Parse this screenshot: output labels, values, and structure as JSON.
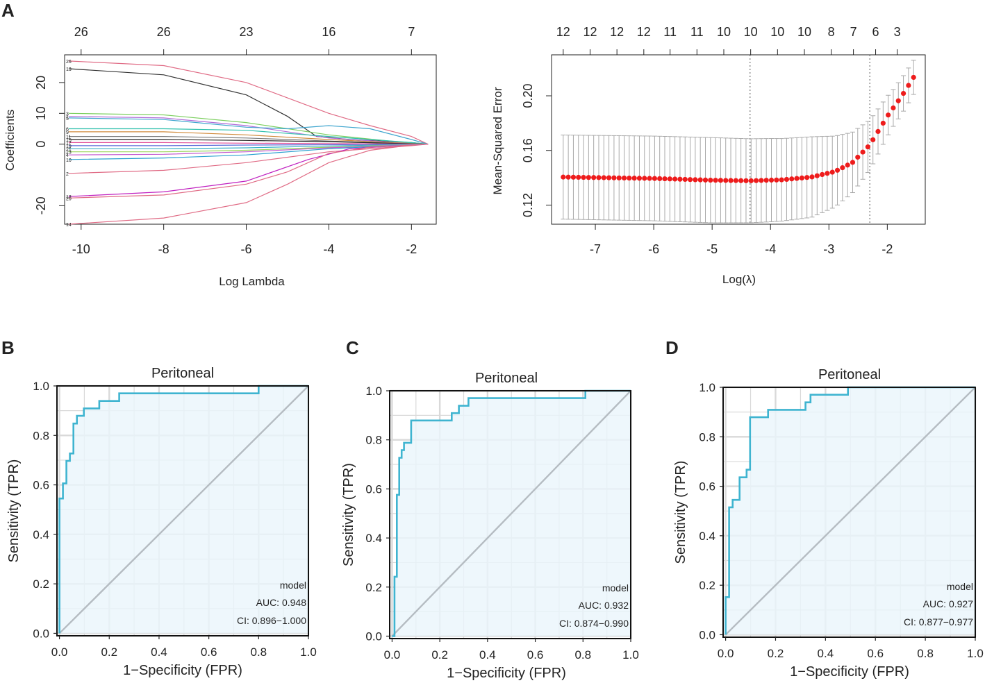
{
  "panels": {
    "A": "A",
    "B": "B",
    "C": "C",
    "D": "D"
  },
  "colors": {
    "roc_line": "#3fb4d0",
    "roc_fill": "#eaf5fb",
    "diagonal": "#b5bcc2",
    "grid": "#d9d9d9",
    "mse_point": "#ee1c1c",
    "errbar": "#a8a8a8"
  },
  "chart_data": [
    {
      "id": "lasso_path",
      "type": "line",
      "xlabel": "Log Lambda",
      "ylabel": "Coefficients",
      "xlim": [
        -10.4,
        -1.4
      ],
      "ylim": [
        -26,
        29
      ],
      "xticks": [
        "-10",
        "-8",
        "-6",
        "-4",
        "-2"
      ],
      "xtick_values": [
        -10,
        -8,
        -6,
        -4,
        -2
      ],
      "yticks": [
        "-20",
        "0",
        "10",
        "20"
      ],
      "ytick_values": [
        -20,
        0,
        10,
        20
      ],
      "top_axis_labels": [
        "26",
        "26",
        "23",
        "16",
        "7"
      ],
      "top_axis_values": [
        -10,
        -8,
        -6,
        -4,
        -2
      ],
      "zero_point": -1.6,
      "series": [
        {
          "label": "26",
          "color": "#e06b85",
          "points": [
            [
              -10.3,
              27
            ],
            [
              -8,
              25.5
            ],
            [
              -6,
              20
            ],
            [
              -4,
              10
            ],
            [
              -3,
              6
            ],
            [
              -2,
              2.5
            ],
            [
              -1.6,
              0
            ]
          ]
        },
        {
          "label": "13",
          "color": "#333333",
          "points": [
            [
              -10.3,
              24.5
            ],
            [
              -8,
              22.5
            ],
            [
              -6,
              16
            ],
            [
              -5,
              9
            ],
            [
              -4.3,
              2.5
            ],
            [
              -3.5,
              1.5
            ],
            [
              -2,
              0.5
            ],
            [
              -1.6,
              0
            ]
          ]
        },
        {
          "label": "3",
          "color": "#7ccf5f",
          "points": [
            [
              -10.3,
              10
            ],
            [
              -8,
              9.5
            ],
            [
              -6,
              7
            ],
            [
              -4,
              3
            ],
            [
              -2,
              0.3
            ],
            [
              -1.6,
              0
            ]
          ]
        },
        {
          "label": "1",
          "color": "#b06ad9",
          "points": [
            [
              -10.3,
              9
            ],
            [
              -8,
              8.5
            ],
            [
              -6,
              6
            ],
            [
              -4,
              2
            ],
            [
              -2,
              0.2
            ],
            [
              -1.6,
              0
            ]
          ]
        },
        {
          "label": "5",
          "color": "#40a6cf",
          "points": [
            [
              -10.3,
              8.5
            ],
            [
              -8,
              8
            ],
            [
              -6,
              5.5
            ],
            [
              -5,
              5
            ],
            [
              -4,
              6
            ],
            [
              -3,
              5
            ],
            [
              -2,
              1.5
            ],
            [
              -1.6,
              0
            ]
          ]
        },
        {
          "label": "6",
          "color": "#2fc0ac",
          "points": [
            [
              -10.3,
              5
            ],
            [
              -8,
              5
            ],
            [
              -6,
              4.5
            ],
            [
              -4,
              2.5
            ],
            [
              -2,
              0.5
            ],
            [
              -1.6,
              0
            ]
          ]
        },
        {
          "label": "9",
          "color": "#d08a3a",
          "points": [
            [
              -10.3,
              4
            ],
            [
              -8,
              4
            ],
            [
              -6,
              3
            ],
            [
              -4,
              1.5
            ],
            [
              -2,
              0.2
            ],
            [
              -1.6,
              0
            ]
          ]
        },
        {
          "label": "11",
          "color": "#7a7a7a",
          "points": [
            [
              -10.3,
              2.5
            ],
            [
              -8,
              2.5
            ],
            [
              -6,
              2
            ],
            [
              -4,
              1
            ],
            [
              -2,
              0.1
            ],
            [
              -1.6,
              0
            ]
          ]
        },
        {
          "label": "15",
          "color": "#222222",
          "points": [
            [
              -10.3,
              1.5
            ],
            [
              -8,
              1.5
            ],
            [
              -6,
              1.2
            ],
            [
              -4,
              0.8
            ],
            [
              -2,
              0.1
            ],
            [
              -1.6,
              0
            ]
          ]
        },
        {
          "label": "17",
          "color": "#e0509a",
          "points": [
            [
              -10.3,
              0.5
            ],
            [
              -8,
              0.5
            ],
            [
              -6,
              0.3
            ],
            [
              -4,
              0.2
            ],
            [
              -1.6,
              0
            ]
          ]
        },
        {
          "label": "19",
          "color": "#5a6ad9",
          "points": [
            [
              -10.3,
              -0.5
            ],
            [
              -8,
              -0.5
            ],
            [
              -6,
              -0.3
            ],
            [
              -4,
              -0.2
            ],
            [
              -1.6,
              0
            ]
          ]
        },
        {
          "label": "21",
          "color": "#3ab0c8",
          "points": [
            [
              -10.3,
              -1.5
            ],
            [
              -8,
              -1.5
            ],
            [
              -6,
              -1.2
            ],
            [
              -4,
              -0.6
            ],
            [
              -1.6,
              0
            ]
          ]
        },
        {
          "label": "23",
          "color": "#9bd45a",
          "points": [
            [
              -10.3,
              -2.5
            ],
            [
              -8,
              -2.5
            ],
            [
              -6,
              -2
            ],
            [
              -4,
              -1
            ],
            [
              -1.6,
              0
            ]
          ]
        },
        {
          "label": "4",
          "color": "#c35ad0",
          "points": [
            [
              -10.3,
              -3.5
            ],
            [
              -8,
              -3.3
            ],
            [
              -6,
              -2.5
            ],
            [
              -4,
              -1.2
            ],
            [
              -1.6,
              0
            ]
          ]
        },
        {
          "label": "10",
          "color": "#2aa0d0",
          "points": [
            [
              -10.3,
              -5
            ],
            [
              -8,
              -4.5
            ],
            [
              -6,
              -3.5
            ],
            [
              -4,
              -1.5
            ],
            [
              -1.6,
              0
            ]
          ]
        },
        {
          "label": "2",
          "color": "#e06b85",
          "points": [
            [
              -10.3,
              -9.5
            ],
            [
              -8,
              -8.5
            ],
            [
              -6,
              -6
            ],
            [
              -4,
              -2.5
            ],
            [
              -2,
              -0.5
            ],
            [
              -1.6,
              0
            ]
          ]
        },
        {
          "label": "12",
          "color": "#c020c0",
          "points": [
            [
              -10.3,
              -17
            ],
            [
              -8,
              -15.5
            ],
            [
              -6,
              -12
            ],
            [
              -4.5,
              -5
            ],
            [
              -3.5,
              -1.5
            ],
            [
              -2,
              -0.3
            ],
            [
              -1.6,
              0
            ]
          ]
        },
        {
          "label": "20",
          "color": "#e06b85",
          "points": [
            [
              -10.3,
              -17.5
            ],
            [
              -8,
              -16.5
            ],
            [
              -6,
              -13
            ],
            [
              -5,
              -9
            ],
            [
              -4,
              -3
            ],
            [
              -3,
              -1
            ],
            [
              -1.6,
              0
            ]
          ]
        },
        {
          "label": "14",
          "color": "#e06b85",
          "points": [
            [
              -10.3,
              -26
            ],
            [
              -8,
              -24
            ],
            [
              -6,
              -19
            ],
            [
              -5,
              -13
            ],
            [
              -4,
              -6
            ],
            [
              -3,
              -2
            ],
            [
              -2,
              -0.3
            ],
            [
              -1.6,
              0
            ]
          ]
        }
      ]
    },
    {
      "id": "cv_mse",
      "type": "scatter",
      "xlabel": "Log(λ)",
      "ylabel": "Mean-Squared Error",
      "xlim": [
        -7.75,
        -1.35
      ],
      "ylim": [
        0.106,
        0.23
      ],
      "xticks": [
        "-7",
        "-6",
        "-5",
        "-4",
        "-3",
        "-2"
      ],
      "xtick_values": [
        -7,
        -6,
        -5,
        -4,
        -3,
        -2
      ],
      "yticks": [
        "0.12",
        "0.16",
        "0.20"
      ],
      "ytick_values": [
        0.12,
        0.16,
        0.2
      ],
      "top_axis_labels": [
        "12",
        "12",
        "12",
        "12",
        "11",
        "11",
        "10",
        "10",
        "10",
        "10",
        "8",
        "7",
        "6",
        "3"
      ],
      "top_axis_values": [
        -7.55,
        -7.09,
        -6.63,
        -6.17,
        -5.72,
        -5.26,
        -4.8,
        -4.34,
        -3.88,
        -3.42,
        -2.96,
        -2.58,
        -2.2,
        -1.83
      ],
      "vlines": [
        -4.35,
        -2.3
      ],
      "x_start": -7.55,
      "x_end": -1.55,
      "n_points": 70,
      "mse_knots": [
        [
          -7.55,
          0.1405
        ],
        [
          -6.0,
          0.1395
        ],
        [
          -5.0,
          0.1382
        ],
        [
          -4.35,
          0.1378
        ],
        [
          -3.8,
          0.1385
        ],
        [
          -3.3,
          0.1405
        ],
        [
          -2.9,
          0.1445
        ],
        [
          -2.6,
          0.151
        ],
        [
          -2.3,
          0.164
        ],
        [
          -2.0,
          0.185
        ],
        [
          -1.75,
          0.2
        ],
        [
          -1.55,
          0.2135
        ]
      ],
      "se_knots": [
        [
          -7.55,
          0.0308
        ],
        [
          -6.0,
          0.031
        ],
        [
          -5.0,
          0.0312
        ],
        [
          -4.0,
          0.0305
        ],
        [
          -3.3,
          0.0295
        ],
        [
          -2.9,
          0.026
        ],
        [
          -2.5,
          0.021
        ],
        [
          -2.2,
          0.017
        ],
        [
          -1.9,
          0.0135
        ],
        [
          -1.55,
          0.0125
        ]
      ]
    },
    {
      "id": "roc_B",
      "type": "line",
      "title": "Peritoneal",
      "xlabel": "1−Specificity (FPR)",
      "ylabel": "Sensitivity (TPR)",
      "xlim": [
        -0.01,
        1.0
      ],
      "ylim": [
        -0.01,
        1.0
      ],
      "ticks": [
        "0.0",
        "0.2",
        "0.4",
        "0.6",
        "0.8",
        "1.0"
      ],
      "tick_values": [
        0,
        0.2,
        0.4,
        0.6,
        0.8,
        1.0
      ],
      "legend_title": "model",
      "auc": "AUC: 0.948",
      "ci": "CI: 0.896−1.000",
      "roc": [
        [
          0,
          0
        ],
        [
          0,
          0.545
        ],
        [
          0.014,
          0.545
        ],
        [
          0.014,
          0.606
        ],
        [
          0.028,
          0.606
        ],
        [
          0.028,
          0.697
        ],
        [
          0.042,
          0.697
        ],
        [
          0.042,
          0.727
        ],
        [
          0.056,
          0.727
        ],
        [
          0.056,
          0.848
        ],
        [
          0.07,
          0.848
        ],
        [
          0.07,
          0.879
        ],
        [
          0.098,
          0.879
        ],
        [
          0.098,
          0.909
        ],
        [
          0.16,
          0.909
        ],
        [
          0.16,
          0.939
        ],
        [
          0.24,
          0.939
        ],
        [
          0.24,
          0.97
        ],
        [
          0.8,
          0.97
        ],
        [
          0.8,
          1.0
        ],
        [
          1.0,
          1.0
        ]
      ]
    },
    {
      "id": "roc_C",
      "type": "line",
      "title": "Peritoneal",
      "xlabel": "1−Specificity (FPR)",
      "ylabel": "Sensitivity (TPR)",
      "xlim": [
        -0.01,
        1.0
      ],
      "ylim": [
        -0.01,
        1.0
      ],
      "ticks": [
        "0.0",
        "0.2",
        "0.4",
        "0.6",
        "0.8",
        "1.0"
      ],
      "tick_values": [
        0,
        0.2,
        0.4,
        0.6,
        0.8,
        1.0
      ],
      "legend_title": "model",
      "auc": "AUC: 0.932",
      "ci": "CI: 0.874−0.990",
      "roc": [
        [
          0,
          0
        ],
        [
          0.01,
          0
        ],
        [
          0.01,
          0.242
        ],
        [
          0.02,
          0.242
        ],
        [
          0.02,
          0.576
        ],
        [
          0.03,
          0.576
        ],
        [
          0.03,
          0.727
        ],
        [
          0.04,
          0.727
        ],
        [
          0.04,
          0.758
        ],
        [
          0.05,
          0.758
        ],
        [
          0.05,
          0.788
        ],
        [
          0.08,
          0.788
        ],
        [
          0.08,
          0.879
        ],
        [
          0.25,
          0.879
        ],
        [
          0.25,
          0.909
        ],
        [
          0.28,
          0.909
        ],
        [
          0.28,
          0.939
        ],
        [
          0.32,
          0.939
        ],
        [
          0.32,
          0.97
        ],
        [
          0.81,
          0.97
        ],
        [
          0.81,
          1.0
        ],
        [
          1.0,
          1.0
        ]
      ]
    },
    {
      "id": "roc_D",
      "type": "line",
      "title": "Peritoneal",
      "xlabel": "1−Specificity (FPR)",
      "ylabel": "Sensitivity (TPR)",
      "xlim": [
        -0.01,
        1.0
      ],
      "ylim": [
        -0.01,
        1.0
      ],
      "ticks": [
        "0.0",
        "0.2",
        "0.4",
        "0.6",
        "0.8",
        "1.0"
      ],
      "tick_values": [
        0,
        0.2,
        0.4,
        0.6,
        0.8,
        1.0
      ],
      "legend_title": "model",
      "auc": "AUC: 0.927",
      "ci": "CI: 0.877−0.977",
      "roc": [
        [
          0,
          0
        ],
        [
          0,
          0.152
        ],
        [
          0.014,
          0.152
        ],
        [
          0.014,
          0.515
        ],
        [
          0.028,
          0.515
        ],
        [
          0.028,
          0.545
        ],
        [
          0.056,
          0.545
        ],
        [
          0.056,
          0.636
        ],
        [
          0.084,
          0.636
        ],
        [
          0.084,
          0.667
        ],
        [
          0.098,
          0.667
        ],
        [
          0.098,
          0.879
        ],
        [
          0.17,
          0.879
        ],
        [
          0.17,
          0.909
        ],
        [
          0.32,
          0.909
        ],
        [
          0.32,
          0.939
        ],
        [
          0.34,
          0.939
        ],
        [
          0.34,
          0.97
        ],
        [
          0.49,
          0.97
        ],
        [
          0.49,
          1.0
        ],
        [
          1.0,
          1.0
        ]
      ]
    }
  ]
}
